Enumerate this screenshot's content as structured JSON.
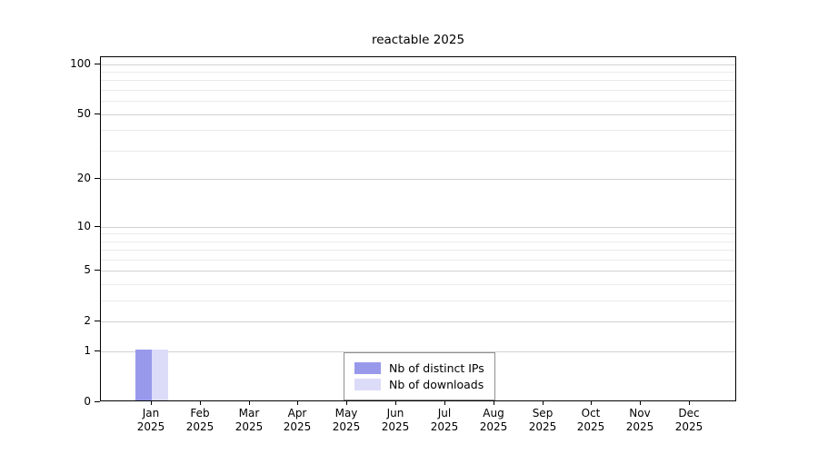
{
  "figure": {
    "title": "reactable 2025"
  },
  "chart_data": {
    "type": "bar",
    "title": "reactable 2025",
    "categories": [
      "Jan 2025",
      "Feb 2025",
      "Mar 2025",
      "Apr 2025",
      "May 2025",
      "Jun 2025",
      "Jul 2025",
      "Aug 2025",
      "Sep 2025",
      "Oct 2025",
      "Nov 2025",
      "Dec 2025"
    ],
    "series": [
      {
        "name": "Nb of distinct IPs",
        "color": "#9999ec",
        "values": [
          1,
          0,
          0,
          0,
          0,
          0,
          0,
          0,
          0,
          0,
          0,
          0
        ]
      },
      {
        "name": "Nb of downloads",
        "color": "#dcdcf8",
        "values": [
          1,
          0,
          0,
          0,
          0,
          0,
          0,
          0,
          0,
          0,
          0,
          0
        ]
      }
    ],
    "y_axis": {
      "scale": "log1p",
      "major_ticks": [
        0,
        1,
        2,
        5,
        10,
        20,
        50,
        100
      ],
      "minor_gridline_values": [
        3,
        4,
        6,
        7,
        8,
        9,
        30,
        40,
        60,
        70,
        80,
        90
      ],
      "range_top_value": 110
    },
    "grid": "horizontal",
    "legend_position": "bottom-center"
  },
  "colors": {
    "axis": "#000000",
    "major_grid": "#d2d2d2",
    "minor_grid": "#eaeaea",
    "background": "#ffffff"
  }
}
